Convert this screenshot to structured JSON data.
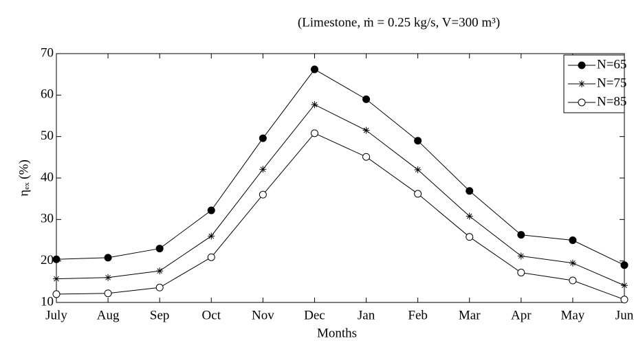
{
  "chart_data": {
    "type": "line",
    "title": "(Limestone, ṁ = 0.25 kg/s, V=300 m³)",
    "xlabel": "Months",
    "ylabel": "ηₑₓ (%)",
    "categories": [
      "July",
      "Aug",
      "Sep",
      "Oct",
      "Nov",
      "Dec",
      "Jan",
      "Feb",
      "Mar",
      "Apr",
      "May",
      "Jun"
    ],
    "series": [
      {
        "name": "N=65",
        "color": "#000000",
        "marker": "filled-circle",
        "values": [
          20.4,
          20.8,
          23,
          32.2,
          49.6,
          66.2,
          59,
          49,
          36.9,
          26.3,
          25,
          19
        ]
      },
      {
        "name": "N=75",
        "color": "#000000",
        "marker": "star",
        "values": [
          15.7,
          16,
          17.6,
          26,
          42.1,
          57.7,
          51.5,
          42,
          30.8,
          21.2,
          19.5,
          14.1
        ]
      },
      {
        "name": "N=85",
        "color": "#000000",
        "marker": "open-circle",
        "values": [
          12,
          12.2,
          13.6,
          20.9,
          36,
          50.8,
          45.1,
          36.2,
          25.8,
          17.2,
          15.3,
          10.7
        ]
      }
    ],
    "ylim": [
      10,
      70
    ],
    "yticks": [
      10,
      20,
      30,
      40,
      50,
      60,
      70
    ],
    "grid": false,
    "legend": "top-right"
  }
}
